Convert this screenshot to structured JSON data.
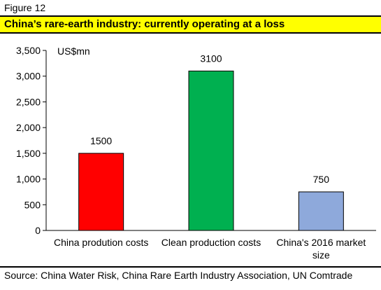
{
  "figure_label": "Figure 12",
  "title": "China’s rare-earth industry: currently operating at a loss",
  "source": "Source: China Water Risk, China Rare Earth Industry Association, UN Comtrade",
  "chart_data": {
    "type": "bar",
    "unit_label": "US$mn",
    "categories": [
      [
        "China prodution costs"
      ],
      [
        "Clean production costs"
      ],
      [
        "China's 2016 market",
        "size"
      ]
    ],
    "values": [
      1500,
      3100,
      750
    ],
    "data_labels": [
      "1500",
      "3100",
      "750"
    ],
    "bar_colors": [
      "#ff0000",
      "#00b050",
      "#8ea9db"
    ],
    "ylim": [
      0,
      3500
    ],
    "yticks": [
      0,
      500,
      1000,
      1500,
      2000,
      2500,
      3000,
      3500
    ],
    "ytick_labels": [
      "0",
      "500",
      "1,000",
      "1,500",
      "2,000",
      "2,500",
      "3,000",
      "3,500"
    ],
    "grid": false,
    "legend": "none"
  }
}
